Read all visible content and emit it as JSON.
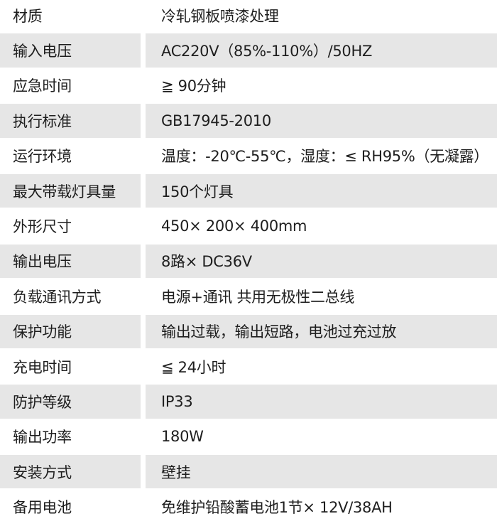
{
  "specs": [
    {
      "label": "材质",
      "value": "冷轧钢板喷漆处理"
    },
    {
      "label": "输入电压",
      "value": "AC220V（85%-110%）/50HZ"
    },
    {
      "label": "应急时间",
      "value": "≧ 90分钟"
    },
    {
      "label": "执行标准",
      "value": "GB17945-2010"
    },
    {
      "label": "运行环境",
      "value": "温度：-20℃-55℃，湿度：≤ RH95%（无凝露）"
    },
    {
      "label": "最大带载灯具量",
      "value": "150个灯具"
    },
    {
      "label": "外形尺寸",
      "value": "450× 200× 400mm"
    },
    {
      "label": "输出电压",
      "value": "8路× DC36V"
    },
    {
      "label": "负载通讯方式",
      "value": "电源+通讯 共用无极性二总线"
    },
    {
      "label": "保护功能",
      "value": "输出过载，输出短路，电池过充过放"
    },
    {
      "label": "充电时间",
      "value": "≦ 24小时"
    },
    {
      "label": "防护等级",
      "value": "IP33"
    },
    {
      "label": "输出功率",
      "value": "180W"
    },
    {
      "label": "安装方式",
      "value": "壁挂"
    },
    {
      "label": "备用电池",
      "value": "免维护铅酸蓄电池1节× 12V/38AH"
    }
  ]
}
